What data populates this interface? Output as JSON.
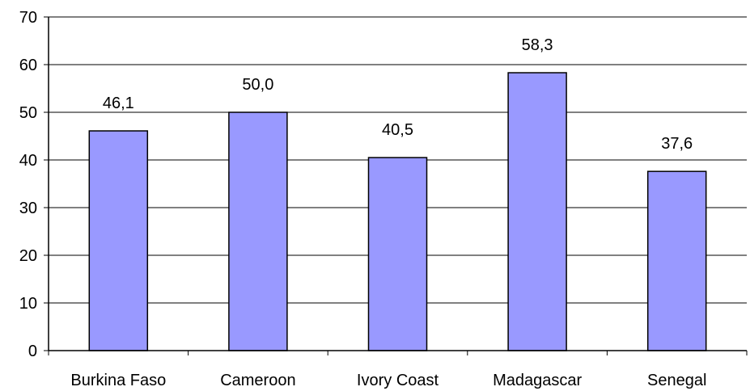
{
  "chart_data": {
    "type": "bar",
    "categories": [
      "Burkina Faso",
      "Cameroon",
      "Ivory Coast",
      "Madagascar",
      "Senegal"
    ],
    "values": [
      46.1,
      50.0,
      40.5,
      58.3,
      37.6
    ],
    "value_labels": [
      "46,1",
      "50,0",
      "40,5",
      "58,3",
      "37,6"
    ],
    "yticks": [
      0,
      10,
      20,
      30,
      40,
      50,
      60,
      70
    ],
    "ylim": [
      0,
      70
    ],
    "grid": true,
    "legend": "none",
    "title": "",
    "xlabel": "",
    "ylabel": "",
    "colors": {
      "bar_fill": "#9999ff",
      "bar_stroke": "#000000",
      "grid": "#000000",
      "axis": "#000000"
    }
  }
}
